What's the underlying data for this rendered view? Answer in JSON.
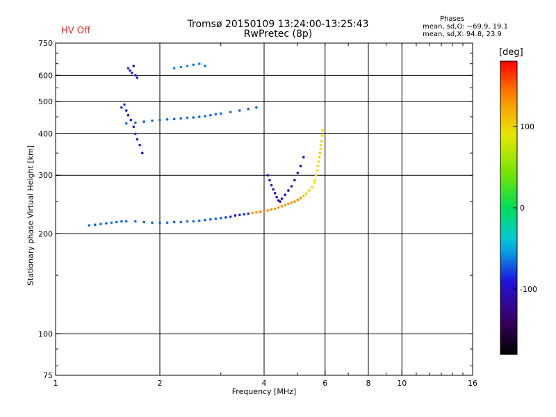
{
  "header": {
    "title_line1": "Tromsø 20150109 13:24:00-13:25:43",
    "title_line2": "RwPretec (8p)",
    "hv_status": "HV Off",
    "hv_color": "#e03030"
  },
  "phase_stats": {
    "title": "Phases",
    "line_o": "mean, sd,O: −69.9, 19.1",
    "line_x": "mean, sd,X:  94.8, 23.9"
  },
  "chart_data": {
    "type": "scatter",
    "title": "Tromsø 20150109 13:24:00-13:25:43",
    "subtitle": "RwPretec (8p)",
    "xlabel": "Frequency [MHz]",
    "ylabel": "Stationary phase Virtual Height [km]",
    "x_scale": "log",
    "y_scale": "log",
    "xlim": [
      1,
      16
    ],
    "ylim": [
      75,
      750
    ],
    "x_ticks": [
      1,
      2,
      4,
      6,
      8,
      10,
      16
    ],
    "y_ticks": [
      75,
      100,
      200,
      300,
      400,
      500,
      600,
      750
    ],
    "x_gridlines": [
      2,
      4,
      6,
      8,
      10
    ],
    "y_gridlines": [
      100,
      200,
      300,
      400,
      500,
      600
    ],
    "grid": true,
    "colorbar": {
      "label": "[deg]",
      "ticks": [
        100,
        0,
        -100
      ],
      "range": [
        -180,
        180
      ]
    },
    "series": [
      {
        "x": [
          1.25,
          1.3,
          1.35,
          1.4,
          1.45,
          1.5,
          1.55,
          1.6,
          1.7,
          1.8,
          1.9,
          2.0,
          2.1,
          2.2,
          2.3,
          2.4,
          2.5,
          2.6,
          2.7,
          2.8,
          2.9,
          3.0
        ],
        "y": [
          212,
          213,
          214,
          215,
          216,
          217,
          218,
          218,
          218,
          217,
          216,
          216,
          216,
          217,
          217,
          218,
          218,
          219,
          220,
          221,
          222,
          223
        ],
        "phase": [
          -70,
          -72,
          -68,
          -70,
          -66,
          -70,
          -72,
          -70,
          -68,
          -70,
          -72,
          -69,
          -70,
          -71,
          -70,
          -68,
          -70,
          -72,
          -70,
          -69,
          -70,
          -71
        ]
      },
      {
        "x": [
          3.1,
          3.2,
          3.3,
          3.4,
          3.5,
          3.6,
          3.7,
          3.8,
          3.9,
          4.0,
          4.1,
          4.2,
          4.3,
          4.4,
          4.5,
          4.6,
          4.7,
          4.8,
          4.9,
          5.0,
          5.1,
          5.2,
          5.3,
          5.4,
          5.5,
          5.6
        ],
        "y": [
          224,
          225,
          227,
          228,
          229,
          230,
          231,
          232,
          233,
          234,
          235,
          237,
          238,
          240,
          242,
          244,
          246,
          248,
          250,
          253,
          256,
          260,
          264,
          270,
          276,
          285
        ],
        "phase": [
          -80,
          -85,
          -90,
          -88,
          -86,
          -84,
          130,
          135,
          140,
          138,
          136,
          134,
          132,
          130,
          128,
          130,
          132,
          134,
          136,
          138,
          140,
          110,
          105,
          100,
          95,
          90
        ]
      },
      {
        "x": [
          5.6,
          5.65,
          5.7,
          5.72,
          5.75,
          5.78,
          5.8,
          5.82,
          5.84,
          5.86,
          5.88,
          5.9
        ],
        "y": [
          290,
          300,
          310,
          320,
          330,
          340,
          350,
          360,
          370,
          380,
          395,
          410
        ],
        "phase": [
          95,
          100,
          90,
          85,
          95,
          100,
          105,
          90,
          95,
          100,
          92,
          98
        ]
      },
      {
        "x": [
          4.1,
          4.15,
          4.2,
          4.25,
          4.3,
          4.35,
          4.4,
          4.45,
          4.5,
          4.6,
          4.7,
          4.8,
          4.9,
          5.0,
          5.1,
          5.2
        ],
        "y": [
          300,
          290,
          280,
          272,
          265,
          258,
          252,
          250,
          255,
          262,
          270,
          278,
          290,
          305,
          320,
          340
        ],
        "phase": [
          -110,
          -112,
          -108,
          -106,
          -110,
          -115,
          -112,
          -108,
          -105,
          -110,
          -112,
          -108,
          -106,
          -110,
          -112,
          -108
        ]
      },
      {
        "x": [
          1.55,
          1.58,
          1.6,
          1.62,
          1.65,
          1.68,
          1.7,
          1.72,
          1.75,
          1.78
        ],
        "y": [
          480,
          490,
          470,
          455,
          440,
          420,
          400,
          385,
          370,
          350
        ],
        "phase": [
          -85,
          -80,
          -90,
          -95,
          -100,
          -90,
          -85,
          -92,
          -88,
          -95
        ]
      },
      {
        "x": [
          1.6,
          1.7,
          1.8,
          1.9,
          2.0,
          2.1,
          2.2,
          2.3,
          2.4,
          2.5,
          2.6,
          2.7,
          2.8,
          2.9,
          3.0,
          3.2,
          3.4,
          3.6,
          3.8
        ],
        "y": [
          430,
          432,
          435,
          438,
          440,
          442,
          443,
          445,
          447,
          448,
          450,
          452,
          455,
          458,
          460,
          465,
          470,
          475,
          480
        ],
        "phase": [
          -70,
          -68,
          -72,
          -70,
          -66,
          -70,
          -72,
          -70,
          -68,
          -70,
          -72,
          -69,
          -70,
          -71,
          -70,
          -68,
          -70,
          -72,
          -70
        ]
      },
      {
        "x": [
          1.62,
          1.64,
          1.66,
          1.68,
          1.7,
          1.72,
          2.2,
          2.3,
          2.4,
          2.5,
          2.6,
          2.7
        ],
        "y": [
          630,
          620,
          610,
          640,
          600,
          590,
          630,
          635,
          640,
          645,
          650,
          640
        ],
        "phase": [
          -80,
          -90,
          -85,
          -95,
          -88,
          -92,
          -60,
          -62,
          -58,
          -65,
          -60,
          -64
        ]
      }
    ]
  }
}
